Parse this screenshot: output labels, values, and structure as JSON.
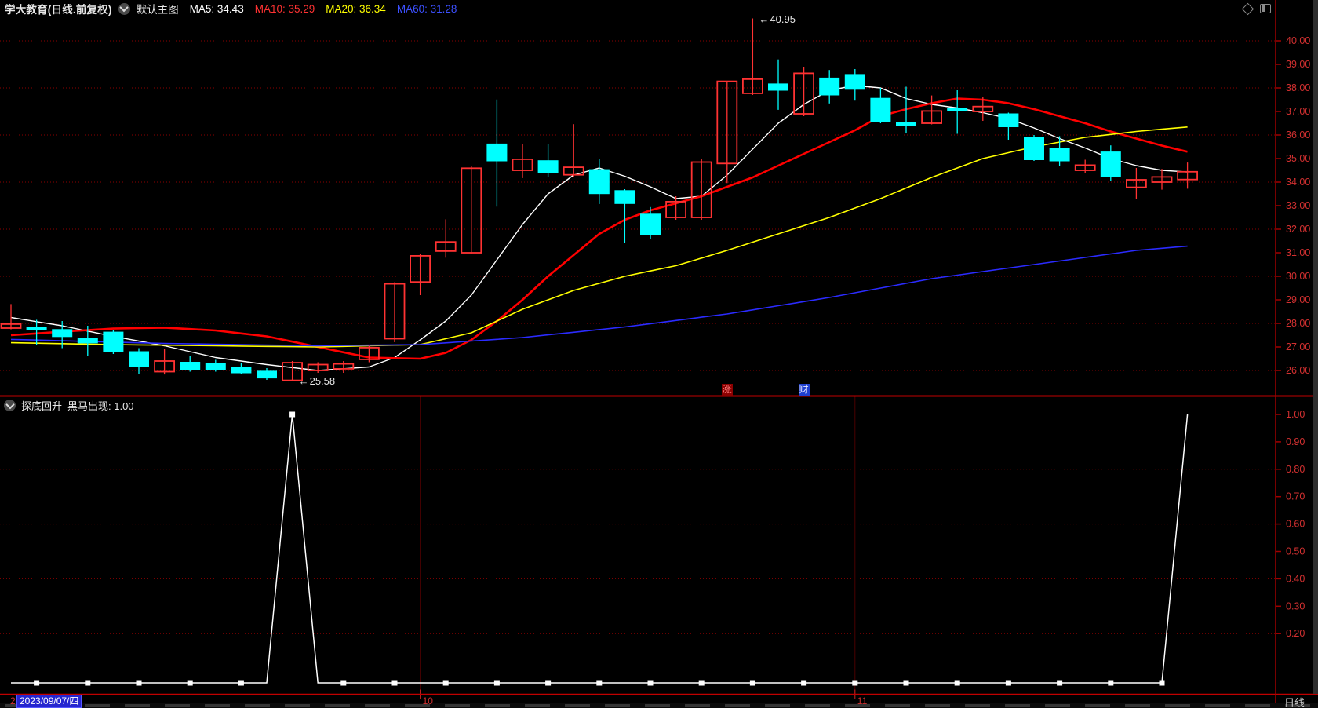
{
  "header": {
    "title": "学大教育(日线.前复权)",
    "layout_label": "默认主图",
    "ma_labels": [
      {
        "text": "MA5: 34.43",
        "color": "#ffffff"
      },
      {
        "text": "MA10: 35.29",
        "color": "#ff3232"
      },
      {
        "text": "MA20: 36.34",
        "color": "#ffff00"
      },
      {
        "text": "MA60: 31.28",
        "color": "#3c50ff"
      }
    ]
  },
  "sub_header": {
    "indicator_name": "探底回升",
    "value_label": "黑马出现: 1.00"
  },
  "bottom_axis": {
    "left_partial_text": "2",
    "date_label": "2023/09/07/四",
    "date_label_bg": "#2525cf",
    "month_ticks": [
      {
        "label": "10",
        "index": 16
      },
      {
        "label": "11",
        "index": 33
      }
    ],
    "period_label": "日线"
  },
  "event_markers": [
    {
      "text": "涨",
      "bg": "#8b0000",
      "color": "#ff8080",
      "index": 28
    },
    {
      "text": "财",
      "bg": "#1e3fd0",
      "color": "#e8e8ff",
      "index": 31
    }
  ],
  "colors": {
    "axis": "#a00000",
    "grid": "#8b0000",
    "tick_label": "#d23030",
    "divider": "#c00000",
    "month_line": "#4a0000",
    "month_tick": "#cc2222",
    "up": "#ff3232",
    "down": "#00ffff",
    "ma5": "#ffffff",
    "ma10": "#ff0000",
    "ma20": "#ffff00",
    "ma60": "#2b2bff",
    "sub_line": "#ffffff"
  },
  "chart_data": {
    "type": "candlestick",
    "main": {
      "title": "学大教育 日线 前复权 K线",
      "ylim": [
        25.4,
        41.0
      ],
      "y_ticks": [
        26,
        27,
        28,
        29,
        30,
        31,
        32,
        33,
        34,
        35,
        36,
        37,
        38,
        39,
        40
      ],
      "grid_values": [
        26,
        28,
        30,
        32,
        34,
        36,
        38,
        40
      ],
      "x_first_date": "2023/09/07/四",
      "x_month_labels": [
        "10",
        "11"
      ],
      "candles": [
        [
          27.8,
          28.82,
          27.75,
          27.97
        ],
        [
          27.85,
          28.15,
          27.1,
          27.73
        ],
        [
          27.74,
          28.1,
          26.95,
          27.44
        ],
        [
          27.35,
          27.9,
          26.6,
          27.17
        ],
        [
          27.63,
          27.7,
          26.7,
          26.8
        ],
        [
          26.8,
          26.95,
          25.85,
          26.18
        ],
        [
          25.95,
          26.9,
          25.83,
          26.4
        ],
        [
          26.35,
          26.6,
          25.95,
          26.05
        ],
        [
          26.3,
          26.45,
          25.95,
          26.03
        ],
        [
          26.13,
          26.3,
          25.85,
          25.9
        ],
        [
          25.97,
          26.1,
          25.6,
          25.68
        ],
        [
          25.58,
          26.4,
          25.58,
          26.33
        ],
        [
          26.0,
          26.35,
          25.9,
          26.25
        ],
        [
          26.07,
          26.4,
          25.9,
          26.28
        ],
        [
          26.47,
          27.05,
          26.35,
          26.97
        ],
        [
          27.35,
          29.75,
          27.2,
          29.68
        ],
        [
          29.76,
          30.95,
          29.2,
          30.87
        ],
        [
          31.07,
          32.42,
          30.79,
          31.46
        ],
        [
          31.0,
          34.7,
          30.95,
          34.59
        ],
        [
          35.62,
          37.51,
          32.96,
          34.9
        ],
        [
          34.5,
          35.63,
          34.17,
          34.97
        ],
        [
          34.91,
          35.63,
          34.22,
          34.41
        ],
        [
          34.31,
          36.46,
          34.2,
          34.63
        ],
        [
          34.53,
          34.98,
          33.07,
          33.51
        ],
        [
          33.64,
          33.7,
          31.42,
          33.09
        ],
        [
          32.64,
          32.94,
          31.6,
          31.76
        ],
        [
          32.5,
          33.4,
          32.4,
          33.17
        ],
        [
          32.5,
          35.0,
          32.4,
          34.85
        ],
        [
          34.79,
          38.3,
          33.96,
          38.28
        ],
        [
          37.77,
          40.95,
          37.7,
          38.37
        ],
        [
          38.17,
          39.21,
          37.07,
          37.9
        ],
        [
          36.9,
          38.9,
          36.8,
          38.62
        ],
        [
          38.42,
          38.76,
          37.34,
          37.7
        ],
        [
          38.57,
          38.8,
          37.46,
          37.94
        ],
        [
          37.56,
          38.0,
          36.5,
          36.58
        ],
        [
          36.53,
          38.05,
          36.1,
          36.4
        ],
        [
          36.5,
          37.68,
          36.45,
          37.02
        ],
        [
          37.15,
          37.9,
          36.05,
          37.05
        ],
        [
          37.0,
          37.6,
          36.6,
          37.21
        ],
        [
          36.9,
          36.95,
          35.8,
          36.35
        ],
        [
          35.9,
          36.0,
          34.9,
          34.95
        ],
        [
          35.45,
          35.95,
          34.7,
          34.9
        ],
        [
          34.5,
          34.95,
          34.4,
          34.72
        ],
        [
          35.28,
          35.56,
          34.06,
          34.22
        ],
        [
          33.78,
          34.6,
          33.28,
          34.1
        ],
        [
          34.0,
          34.56,
          33.68,
          34.22
        ],
        [
          34.11,
          34.83,
          33.72,
          34.44
        ]
      ],
      "annotations": [
        {
          "index": 29,
          "price": 40.95,
          "arrow": "←",
          "text": "40.95"
        },
        {
          "index": 11,
          "price": 25.58,
          "arrow": "←",
          "text": "25.58"
        }
      ],
      "ma_series": [
        {
          "name": "MA5",
          "points": [
            [
              0,
              28.25
            ],
            [
              2,
              27.9
            ],
            [
              4,
              27.45
            ],
            [
              6,
              27.05
            ],
            [
              8,
              26.55
            ],
            [
              10,
              26.25
            ],
            [
              12,
              26.0
            ],
            [
              14,
              26.15
            ],
            [
              15,
              26.55
            ],
            [
              16,
              27.3
            ],
            [
              17,
              28.1
            ],
            [
              18,
              29.2
            ],
            [
              19,
              30.7
            ],
            [
              20,
              32.2
            ],
            [
              21,
              33.5
            ],
            [
              22,
              34.3
            ],
            [
              23,
              34.6
            ],
            [
              24,
              34.25
            ],
            [
              25,
              33.8
            ],
            [
              26,
              33.3
            ],
            [
              27,
              33.4
            ],
            [
              28,
              34.3
            ],
            [
              29,
              35.4
            ],
            [
              30,
              36.5
            ],
            [
              31,
              37.3
            ],
            [
              32,
              37.9
            ],
            [
              33,
              38.1
            ],
            [
              34,
              38.0
            ],
            [
              35,
              37.55
            ],
            [
              36,
              37.3
            ],
            [
              37,
              37.15
            ],
            [
              38,
              36.95
            ],
            [
              39,
              36.7
            ],
            [
              40,
              36.3
            ],
            [
              41,
              35.85
            ],
            [
              42,
              35.45
            ],
            [
              43,
              35.0
            ],
            [
              44,
              34.7
            ],
            [
              45,
              34.5
            ],
            [
              46,
              34.43
            ]
          ]
        },
        {
          "name": "MA10",
          "points": [
            [
              0,
              27.5
            ],
            [
              2,
              27.65
            ],
            [
              4,
              27.78
            ],
            [
              6,
              27.82
            ],
            [
              8,
              27.7
            ],
            [
              10,
              27.45
            ],
            [
              12,
              27.0
            ],
            [
              14,
              26.55
            ],
            [
              16,
              26.5
            ],
            [
              17,
              26.75
            ],
            [
              18,
              27.3
            ],
            [
              19,
              28.1
            ],
            [
              20,
              29.0
            ],
            [
              21,
              30.0
            ],
            [
              22,
              30.9
            ],
            [
              23,
              31.8
            ],
            [
              24,
              32.4
            ],
            [
              25,
              32.8
            ],
            [
              26,
              33.1
            ],
            [
              27,
              33.4
            ],
            [
              28,
              33.8
            ],
            [
              29,
              34.2
            ],
            [
              30,
              34.7
            ],
            [
              31,
              35.2
            ],
            [
              32,
              35.7
            ],
            [
              33,
              36.2
            ],
            [
              34,
              36.8
            ],
            [
              35,
              37.1
            ],
            [
              36,
              37.35
            ],
            [
              37,
              37.55
            ],
            [
              38,
              37.5
            ],
            [
              39,
              37.35
            ],
            [
              40,
              37.1
            ],
            [
              41,
              36.8
            ],
            [
              42,
              36.5
            ],
            [
              43,
              36.15
            ],
            [
              44,
              35.85
            ],
            [
              45,
              35.55
            ],
            [
              46,
              35.29
            ]
          ]
        },
        {
          "name": "MA20",
          "points": [
            [
              0,
              27.18
            ],
            [
              4,
              27.1
            ],
            [
              8,
              27.05
            ],
            [
              12,
              27.0
            ],
            [
              16,
              27.1
            ],
            [
              18,
              27.6
            ],
            [
              20,
              28.6
            ],
            [
              22,
              29.4
            ],
            [
              24,
              30.0
            ],
            [
              26,
              30.45
            ],
            [
              28,
              31.1
            ],
            [
              30,
              31.8
            ],
            [
              32,
              32.5
            ],
            [
              34,
              33.3
            ],
            [
              36,
              34.2
            ],
            [
              38,
              35.0
            ],
            [
              40,
              35.5
            ],
            [
              42,
              35.9
            ],
            [
              44,
              36.15
            ],
            [
              46,
              36.34
            ]
          ]
        },
        {
          "name": "MA60",
          "points": [
            [
              0,
              27.32
            ],
            [
              6,
              27.15
            ],
            [
              12,
              27.05
            ],
            [
              16,
              27.1
            ],
            [
              20,
              27.4
            ],
            [
              24,
              27.85
            ],
            [
              28,
              28.4
            ],
            [
              32,
              29.1
            ],
            [
              36,
              29.9
            ],
            [
              40,
              30.5
            ],
            [
              44,
              31.1
            ],
            [
              46,
              31.28
            ]
          ]
        }
      ]
    },
    "sub": {
      "indicator": "探底回升",
      "series_label": "黑马出现",
      "last_value": 1.0,
      "ylim": [
        0,
        1.04
      ],
      "y_ticks": [
        0.2,
        0.3,
        0.4,
        0.5,
        0.6,
        0.7,
        0.8,
        0.9,
        1.0
      ],
      "grid_values": [
        0.2,
        0.4,
        0.6,
        0.8
      ],
      "values": [
        0.02,
        0.02,
        0.02,
        0.02,
        0.02,
        0.02,
        0.02,
        0.02,
        0.02,
        0.02,
        0.02,
        1.0,
        0.02,
        0.02,
        0.02,
        0.02,
        0.02,
        0.02,
        0.02,
        0.02,
        0.02,
        0.02,
        0.02,
        0.02,
        0.02,
        0.02,
        0.02,
        0.02,
        0.02,
        0.02,
        0.02,
        0.02,
        0.02,
        0.02,
        0.02,
        0.02,
        0.02,
        0.02,
        0.02,
        0.02,
        0.02,
        0.02,
        0.02,
        0.02,
        0.02,
        0.02,
        1.0
      ]
    }
  }
}
